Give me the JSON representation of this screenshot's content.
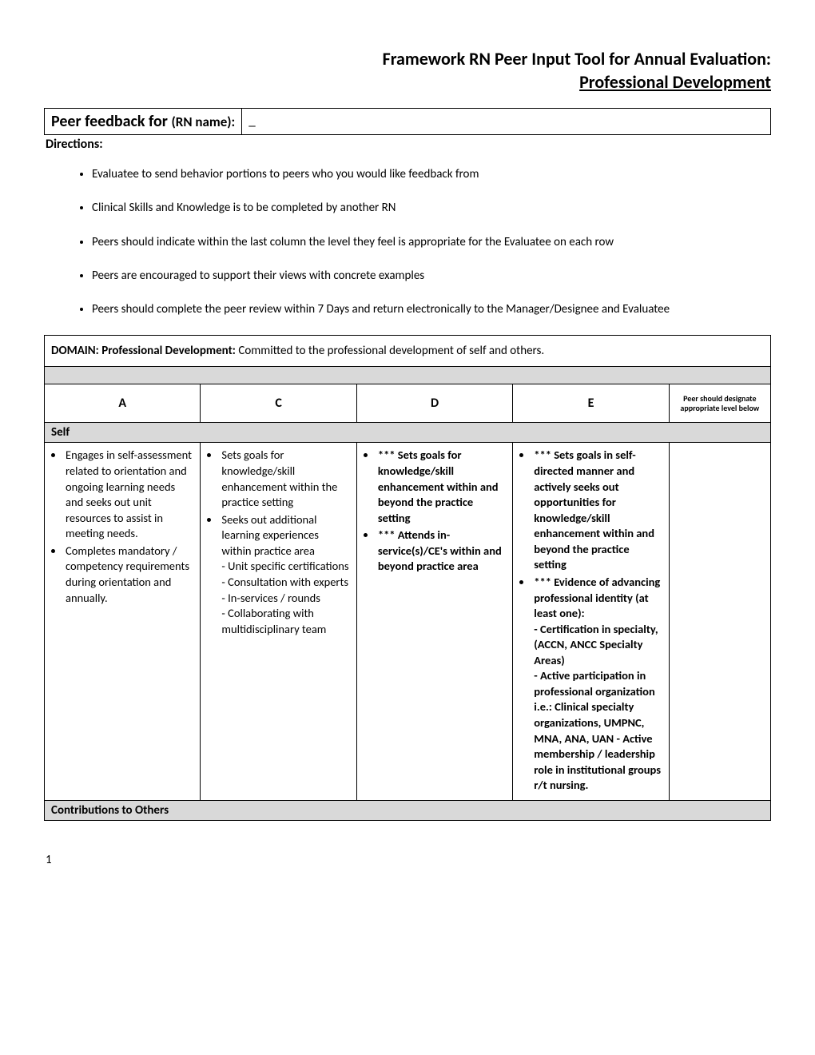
{
  "header": {
    "line1": "Framework RN Peer Input Tool for Annual Evaluation:",
    "line2": "Professional Development"
  },
  "feedback_box": {
    "label_prefix": "Peer feedback for",
    "label_suffix": "(RN name):",
    "value": "_"
  },
  "directions": {
    "title": "Directions:",
    "items": [
      "Evaluatee to send behavior portions to peers who you would like  feedback from",
      "Clinical Skills and Knowledge is to be completed by another RN",
      "Peers should indicate within the last column the level they feel is appropriate for the Evaluatee on each row",
      "Peers are encouraged  to support their views with concrete examples",
      "Peers should complete the peer review within 7 Days and return electronically to the Manager/Designee and Evaluatee"
    ]
  },
  "domain_header": {
    "label": "DOMAIN:  Professional Development:",
    "desc": " Committed to the professional development of self and others."
  },
  "columns": {
    "a": "A",
    "c": "C",
    "d": "D",
    "e": "E",
    "peer": "Peer should designate appropriate level below"
  },
  "sections": {
    "self": "Self",
    "contrib": "Contributions to Others"
  },
  "self_content": {
    "col_a": [
      "Engages in self-assessment related to orientation and ongoing learning needs and seeks out unit resources to assist in meeting needs.",
      "Completes mandatory / competency requirements during orientation and annually."
    ],
    "col_c": {
      "items": [
        "Sets goals for knowledge/skill enhancement within the practice setting",
        "Seeks out additional learning experiences within practice area"
      ],
      "subs": [
        "- Unit specific certifications",
        "- Consultation with experts",
        "- In-services / rounds",
        "- Collaborating with multidisciplinary team"
      ]
    },
    "col_d": [
      "*** Sets goals for knowledge/skill enhancement within and beyond the practice setting",
      "*** Attends in-service(s)/CE's within and beyond practice area"
    ],
    "col_e": {
      "items": [
        "*** Sets goals in self-directed manner and actively seeks out opportunities for knowledge/skill enhancement within and beyond the practice setting",
        "*** Evidence of advancing professional identity (at least one):"
      ],
      "subs": [
        "- Certification in specialty,  (ACCN, ANCC Specialty Areas)",
        "- Active participation in  professional organization  i.e.: Clinical specialty organizations, UMPNC, MNA, ANA, UAN - Active membership / leadership role in institutional groups r/t nursing."
      ]
    }
  },
  "page_number": "1"
}
